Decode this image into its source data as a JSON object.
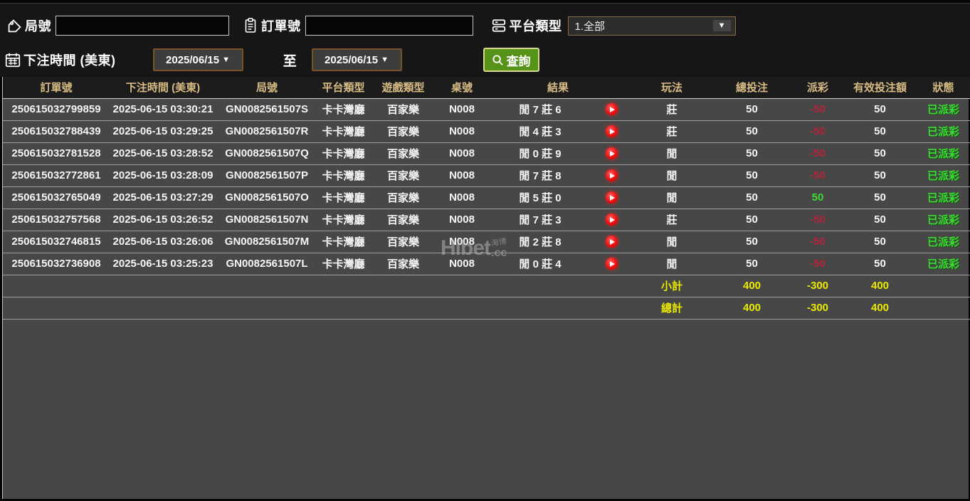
{
  "filters": {
    "game_no_label": "局號",
    "order_no_label": "訂單號",
    "platform_label": "平台類型",
    "platform_value": "1.全部",
    "bet_time_label": "下注時間 (美東)",
    "date_from": "2025/06/15",
    "date_to": "2025/06/15",
    "to_label": "至",
    "query_label": "查詢"
  },
  "watermark": {
    "main": "Hibet",
    "cn": "海博",
    "cc": ".cc"
  },
  "table": {
    "headers": [
      {
        "key": "order-no",
        "label": "訂單號"
      },
      {
        "key": "bet-time",
        "label": "下注時間 (美東)"
      },
      {
        "key": "game-no",
        "label": "局號"
      },
      {
        "key": "platform",
        "label": "平台類型"
      },
      {
        "key": "game-type",
        "label": "遊戲類型"
      },
      {
        "key": "table-no",
        "label": "桌號"
      },
      {
        "key": "result",
        "label": "結果"
      },
      {
        "key": "play-method",
        "label": "玩法"
      },
      {
        "key": "total-bet",
        "label": "總投注"
      },
      {
        "key": "payout",
        "label": "派彩"
      },
      {
        "key": "valid-bet",
        "label": "有效投注額"
      },
      {
        "key": "status",
        "label": "狀態"
      }
    ],
    "rows": [
      {
        "order_no": "250615032799859",
        "bet_time": "2025-06-15 03:30:21",
        "game_no": "GN0082561507S",
        "platform": "卡卡灣廳",
        "game_type": "百家樂",
        "table_no": "N008",
        "result": "閒 7 莊 6",
        "play": "莊",
        "total_bet": "50",
        "payout": "-50",
        "payout_color": "red",
        "valid_bet": "50",
        "status": "已派彩"
      },
      {
        "order_no": "250615032788439",
        "bet_time": "2025-06-15 03:29:25",
        "game_no": "GN0082561507R",
        "platform": "卡卡灣廳",
        "game_type": "百家樂",
        "table_no": "N008",
        "result": "閒 4 莊 3",
        "play": "莊",
        "total_bet": "50",
        "payout": "-50",
        "payout_color": "red",
        "valid_bet": "50",
        "status": "已派彩"
      },
      {
        "order_no": "250615032781528",
        "bet_time": "2025-06-15 03:28:52",
        "game_no": "GN0082561507Q",
        "platform": "卡卡灣廳",
        "game_type": "百家樂",
        "table_no": "N008",
        "result": "閒 0 莊 9",
        "play": "閒",
        "total_bet": "50",
        "payout": "-50",
        "payout_color": "red",
        "valid_bet": "50",
        "status": "已派彩"
      },
      {
        "order_no": "250615032772861",
        "bet_time": "2025-06-15 03:28:09",
        "game_no": "GN0082561507P",
        "platform": "卡卡灣廳",
        "game_type": "百家樂",
        "table_no": "N008",
        "result": "閒 7 莊 8",
        "play": "閒",
        "total_bet": "50",
        "payout": "-50",
        "payout_color": "red",
        "valid_bet": "50",
        "status": "已派彩"
      },
      {
        "order_no": "250615032765049",
        "bet_time": "2025-06-15 03:27:29",
        "game_no": "GN0082561507O",
        "platform": "卡卡灣廳",
        "game_type": "百家樂",
        "table_no": "N008",
        "result": "閒 5 莊 0",
        "play": "閒",
        "total_bet": "50",
        "payout": "50",
        "payout_color": "green",
        "valid_bet": "50",
        "status": "已派彩"
      },
      {
        "order_no": "250615032757568",
        "bet_time": "2025-06-15 03:26:52",
        "game_no": "GN0082561507N",
        "platform": "卡卡灣廳",
        "game_type": "百家樂",
        "table_no": "N008",
        "result": "閒 7 莊 3",
        "play": "莊",
        "total_bet": "50",
        "payout": "-50",
        "payout_color": "red",
        "valid_bet": "50",
        "status": "已派彩"
      },
      {
        "order_no": "250615032746815",
        "bet_time": "2025-06-15 03:26:06",
        "game_no": "GN0082561507M",
        "platform": "卡卡灣廳",
        "game_type": "百家樂",
        "table_no": "N008",
        "result": "閒 2 莊 8",
        "play": "閒",
        "total_bet": "50",
        "payout": "-50",
        "payout_color": "red",
        "valid_bet": "50",
        "status": "已派彩"
      },
      {
        "order_no": "250615032736908",
        "bet_time": "2025-06-15 03:25:23",
        "game_no": "GN0082561507L",
        "platform": "卡卡灣廳",
        "game_type": "百家樂",
        "table_no": "N008",
        "result": "閒 0 莊 4",
        "play": "閒",
        "total_bet": "50",
        "payout": "-50",
        "payout_color": "red",
        "valid_bet": "50",
        "status": "已派彩"
      }
    ],
    "subtotal": {
      "label": "小計",
      "total_bet": "400",
      "payout": "-300",
      "valid_bet": "400"
    },
    "total": {
      "label": "總計",
      "total_bet": "400",
      "payout": "-300",
      "valid_bet": "400"
    }
  },
  "colors": {
    "accent_green_button": "#569318",
    "status_green": "#3ddb35",
    "payout_red": "#b3243c",
    "totals_yellow": "#ebeb00",
    "header_tan": "#d8bc84",
    "row_bg": "#474747",
    "play_icon_red": "#ee0f0f"
  }
}
